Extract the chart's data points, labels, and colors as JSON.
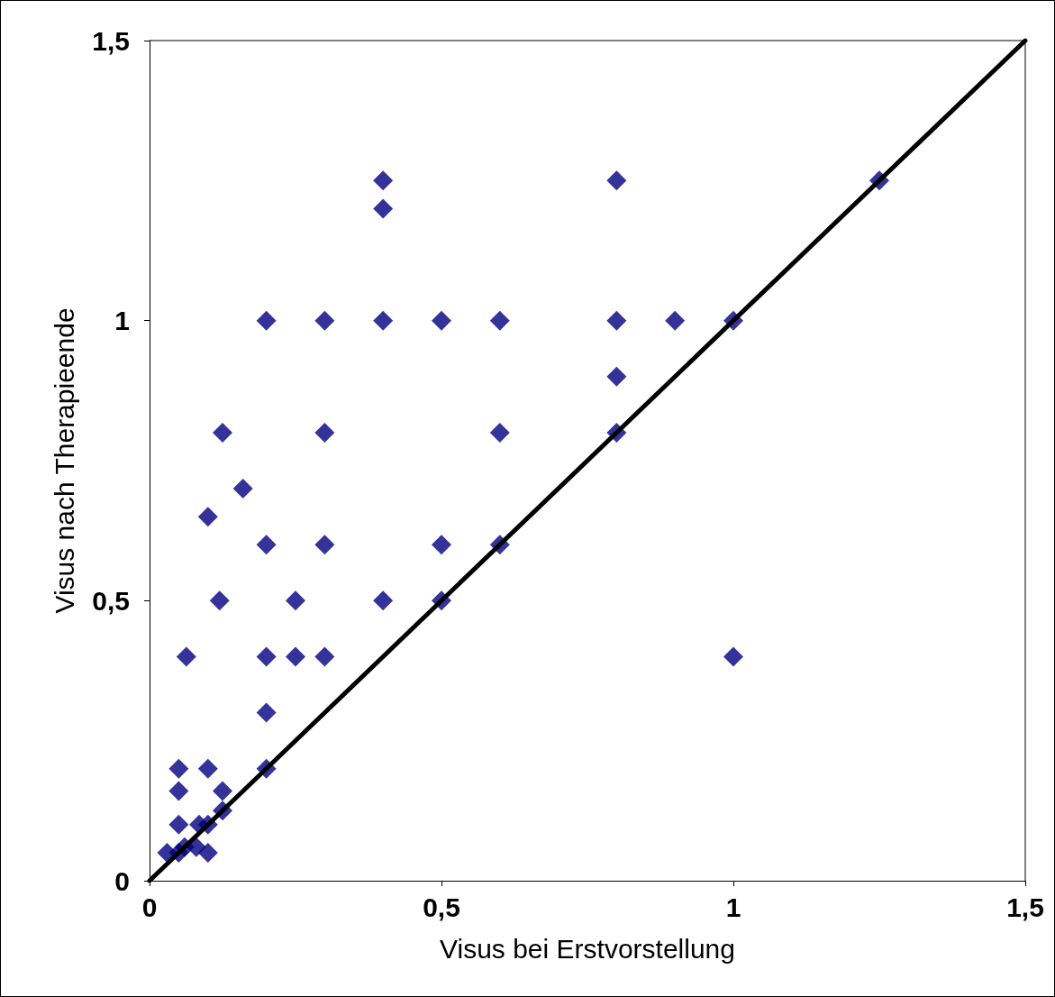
{
  "chart_data": {
    "type": "scatter",
    "xlabel": "Visus bei Erstvorstellung",
    "ylabel": "Visus nach Therapieende",
    "xlim": [
      0,
      1.5
    ],
    "ylim": [
      0,
      1.5
    ],
    "xticks": [
      0,
      {
        "value": 0.5,
        "label": "0,5"
      },
      1,
      {
        "value": 1.5,
        "label": "1,5"
      }
    ],
    "yticks": [
      0,
      {
        "value": 0.5,
        "label": "0,5"
      },
      1,
      {
        "value": 1.5,
        "label": "1,5"
      }
    ],
    "grid": false,
    "series": [
      {
        "marker": "diamond",
        "color": "#000080",
        "x": [
          0.05,
          0.1,
          0.05,
          0.125,
          0.125,
          0.2,
          0.05,
          0.085,
          0.1,
          0.03,
          0.05,
          0.06,
          0.08,
          0.1,
          0.125,
          0.3,
          0.6,
          0.16,
          0.1,
          0.2,
          0.3,
          0.5,
          0.6,
          0.12,
          0.25,
          0.4,
          0.5,
          0.063,
          0.2,
          0.25,
          0.3,
          0.2,
          0.4,
          0.4,
          0.8,
          1.25,
          0.2,
          0.3,
          0.4,
          0.5,
          0.6,
          0.8,
          0.9,
          1.0,
          0.8,
          0.8,
          1.0
        ],
        "values": [
          0.2,
          0.2,
          0.16,
          0.16,
          0.125,
          0.2,
          0.1,
          0.1,
          0.1,
          0.05,
          0.05,
          0.06,
          0.06,
          0.05,
          0.8,
          0.8,
          0.8,
          0.7,
          0.65,
          0.6,
          0.6,
          0.6,
          0.6,
          0.5,
          0.5,
          0.5,
          0.5,
          0.4,
          0.4,
          0.4,
          0.4,
          0.3,
          1.25,
          1.2,
          1.25,
          1.25,
          1.0,
          1.0,
          1.0,
          1.0,
          1.0,
          1.0,
          1.0,
          1.0,
          0.9,
          0.8,
          0.4
        ]
      },
      {
        "type": "line",
        "marker": "none",
        "line_style": "solid",
        "color": "#000000",
        "x": [
          0,
          1.5
        ],
        "values": [
          0,
          1.5
        ]
      }
    ]
  }
}
